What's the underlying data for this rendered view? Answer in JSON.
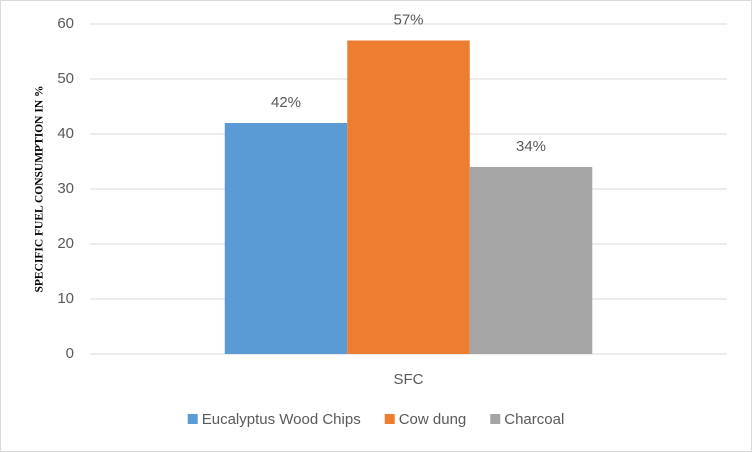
{
  "chart_data": {
    "type": "bar",
    "y_label": "SPECIFIC FUEL CONSUMPTION IN %",
    "categories": [
      "SFC"
    ],
    "series": [
      {
        "name": "Eucalyptus Wood Chips",
        "color": "#5b9bd5",
        "values": [
          42
        ],
        "value_labels": [
          "42%"
        ]
      },
      {
        "name": "Cow dung",
        "color": "#ed7d31",
        "values": [
          57
        ],
        "value_labels": [
          "57%"
        ]
      },
      {
        "name": "Charcoal",
        "color": "#a5a5a5",
        "values": [
          34
        ],
        "value_labels": [
          "34%"
        ]
      }
    ],
    "ylim": [
      0,
      60
    ],
    "yticks": [
      0,
      10,
      20,
      30,
      40,
      50,
      60
    ],
    "grid": true,
    "legend": "bottom"
  }
}
